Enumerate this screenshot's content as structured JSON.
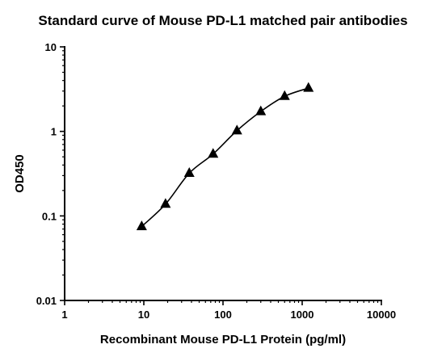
{
  "chart_data": {
    "type": "scatter",
    "title": "Standard curve of Mouse PD-L1 matched pair antibodies",
    "xlabel": "Recombinant Mouse PD-L1 Protein (pg/ml)",
    "ylabel": "OD450",
    "xscale": "log",
    "yscale": "log",
    "xlim": [
      1,
      10000
    ],
    "ylim": [
      0.01,
      10
    ],
    "x_ticks": [
      "1",
      "10",
      "100",
      "1000",
      "10000"
    ],
    "y_ticks": [
      "0.01",
      "0.1",
      "1",
      "10"
    ],
    "grid": false,
    "legend": "none",
    "fitted_curve": true,
    "marker": "triangle",
    "series": [
      {
        "x": [
          9.4,
          18.8,
          37.5,
          75,
          150,
          300,
          600,
          1200
        ],
        "y": [
          0.075,
          0.138,
          0.32,
          0.54,
          1.02,
          1.72,
          2.6,
          3.25
        ]
      }
    ]
  }
}
